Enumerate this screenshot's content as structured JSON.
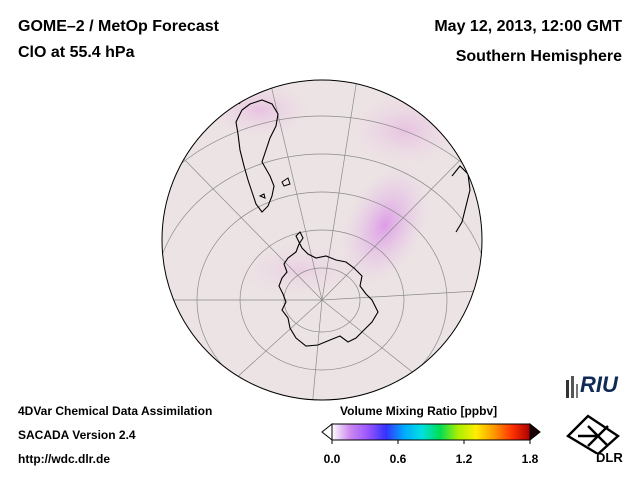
{
  "header": {
    "title_left_line1": "GOME–2 / MetOp Forecast",
    "title_left_line2": "ClO at 55.4 hPa",
    "title_right_line1": "May 12, 2013, 12:00 GMT",
    "title_right_line2": "Southern Hemisphere"
  },
  "footer": {
    "line1": "4DVar Chemical Data Assimilation",
    "line2": "SACADA Version 2.4",
    "line3": "http://wdc.dlr.de"
  },
  "colorbar": {
    "title": "Volume Mixing Ratio [ppbv]",
    "min": 0.0,
    "max": 1.8,
    "ticks": [
      "0.0",
      "0.6",
      "1.2",
      "1.8"
    ],
    "tick_values": [
      0.0,
      0.6,
      1.2,
      1.8
    ],
    "colors": [
      "#ffffff",
      "#cc88ee",
      "#9955ff",
      "#3333ff",
      "#00aaff",
      "#00e0e0",
      "#00dd55",
      "#aaee00",
      "#ffee00",
      "#ff9900",
      "#ff3300",
      "#aa0000"
    ]
  },
  "map": {
    "projection": "orthographic",
    "hemisphere": "Southern",
    "background_color": "#ece3e3"
  },
  "logos": {
    "riu": "RIU",
    "dlr": "DLR"
  }
}
